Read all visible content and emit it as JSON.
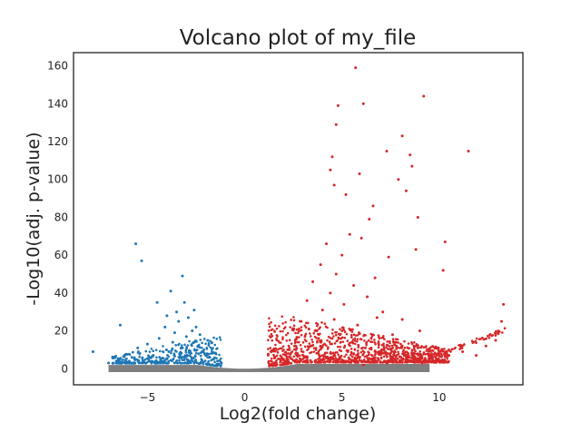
{
  "chart_data": {
    "type": "scatter",
    "title": "Volcano plot of my_file",
    "xlabel": "Log2(fold change)",
    "ylabel": "-Log10(adj. p-value)",
    "xlim": [
      -8.8,
      14.3
    ],
    "ylim": [
      -8.5,
      167
    ],
    "xticks": [
      -5,
      0,
      5,
      10
    ],
    "xtick_labels": [
      "−5",
      "0",
      "5",
      "10"
    ],
    "yticks": [
      0,
      20,
      40,
      60,
      80,
      100,
      120,
      140,
      160
    ],
    "ytick_labels": [
      "0",
      "20",
      "40",
      "60",
      "80",
      "100",
      "120",
      "140",
      "160"
    ],
    "grid": false,
    "legend": "none",
    "colors": {
      "down": "#1f77b4",
      "up": "#d62728",
      "ns": "#7f7f7f"
    },
    "series": [
      {
        "key": "down",
        "points": [
          [
            -5.6,
            66
          ],
          [
            -5.3,
            57
          ],
          [
            -3.2,
            49
          ],
          [
            -3.8,
            41
          ],
          [
            -6.4,
            23
          ],
          [
            -7.8,
            9
          ],
          [
            -4.5,
            35
          ],
          [
            -3.5,
            30
          ],
          [
            -2.9,
            27
          ],
          [
            -3.4,
            25
          ],
          [
            -4.1,
            22
          ],
          [
            -2.7,
            20
          ],
          [
            -3.0,
            17
          ],
          [
            -2.6,
            14
          ],
          [
            -2.4,
            12
          ],
          [
            -3.6,
            19
          ],
          [
            -4.4,
            16
          ],
          [
            -5.0,
            13
          ],
          [
            -5.5,
            11
          ],
          [
            -2.2,
            9
          ],
          [
            -2.0,
            7
          ],
          [
            -1.8,
            6
          ],
          [
            -1.6,
            5
          ],
          [
            -1.4,
            4
          ],
          [
            -1.2,
            3
          ],
          [
            -3.2,
            11
          ],
          [
            -2.8,
            8
          ],
          [
            -3.9,
            9
          ],
          [
            -4.7,
            7
          ],
          [
            -5.8,
            6
          ],
          [
            -6.5,
            4
          ],
          [
            -7.0,
            3
          ],
          [
            -2.5,
            22
          ],
          [
            -3.1,
            35
          ],
          [
            -2.3,
            18
          ],
          [
            -4.0,
            28
          ],
          [
            -3.7,
            14
          ],
          [
            -2.1,
            10
          ],
          [
            -1.9,
            15
          ],
          [
            -2.6,
            31
          ]
        ]
      },
      {
        "key": "up",
        "points": [
          [
            5.7,
            159
          ],
          [
            9.2,
            144
          ],
          [
            4.8,
            139
          ],
          [
            6.1,
            140
          ],
          [
            4.7,
            129
          ],
          [
            8.1,
            123
          ],
          [
            7.3,
            115
          ],
          [
            11.5,
            115
          ],
          [
            4.5,
            112
          ],
          [
            8.5,
            113
          ],
          [
            4.4,
            105
          ],
          [
            5.9,
            103
          ],
          [
            7.9,
            100
          ],
          [
            8.6,
            107
          ],
          [
            4.6,
            97
          ],
          [
            5.2,
            92
          ],
          [
            8.3,
            94
          ],
          [
            6.6,
            86
          ],
          [
            6.4,
            79
          ],
          [
            8.9,
            80
          ],
          [
            10.3,
            67
          ],
          [
            8.8,
            63
          ],
          [
            10.2,
            52
          ],
          [
            13.3,
            34
          ],
          [
            13.2,
            25
          ],
          [
            7.4,
            59
          ],
          [
            5.4,
            71
          ],
          [
            4.2,
            66
          ],
          [
            6.0,
            69
          ],
          [
            5.0,
            60
          ],
          [
            3.9,
            55
          ],
          [
            4.7,
            50
          ],
          [
            6.7,
            48
          ],
          [
            3.5,
            46
          ],
          [
            5.6,
            44
          ],
          [
            4.4,
            40
          ],
          [
            6.3,
            38
          ],
          [
            3.2,
            36
          ],
          [
            5.1,
            34
          ],
          [
            7.1,
            30
          ],
          [
            4.0,
            31
          ],
          [
            6.8,
            27
          ],
          [
            2.9,
            25
          ],
          [
            5.8,
            23
          ],
          [
            3.7,
            20
          ],
          [
            4.9,
            18
          ],
          [
            6.5,
            16
          ],
          [
            2.6,
            15
          ],
          [
            3.4,
            12
          ],
          [
            2.3,
            10
          ],
          [
            5.3,
            9
          ],
          [
            7.8,
            12
          ],
          [
            9.5,
            10
          ],
          [
            8.4,
            8
          ],
          [
            10.5,
            7
          ],
          [
            11.2,
            9
          ],
          [
            12.4,
            12
          ],
          [
            12.9,
            15
          ],
          [
            11.9,
            7
          ],
          [
            9.9,
            5
          ],
          [
            8.9,
            4
          ],
          [
            7.3,
            3
          ],
          [
            6.1,
            2
          ],
          [
            1.9,
            6
          ],
          [
            2.1,
            4
          ],
          [
            1.5,
            3
          ],
          [
            3.0,
            7
          ],
          [
            4.3,
            5
          ],
          [
            5.9,
            6
          ],
          [
            6.9,
            9
          ],
          [
            7.6,
            18
          ],
          [
            8.1,
            26
          ],
          [
            9.0,
            20
          ],
          [
            4.6,
            26
          ],
          [
            3.8,
            16
          ],
          [
            5.5,
            14
          ],
          [
            6.2,
            11
          ],
          [
            2.7,
            8
          ],
          [
            3.3,
            21
          ],
          [
            4.1,
            13
          ]
        ]
      }
    ]
  }
}
